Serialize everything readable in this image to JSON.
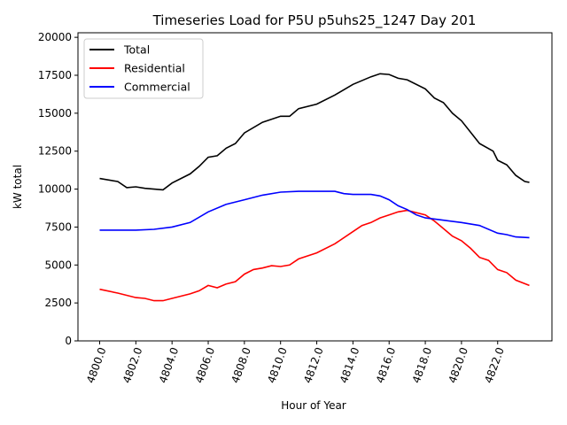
{
  "chart_data": {
    "type": "line",
    "title": "Timeseries Load for P5U p5uhs25_1247  Day 201",
    "xlabel": "Hour of Year",
    "ylabel": "kW total",
    "xlim": [
      4798.8,
      4825.0
    ],
    "ylim": [
      0,
      20300
    ],
    "xticks": [
      4800,
      4802,
      4804,
      4806,
      4808,
      4810,
      4812,
      4814,
      4816,
      4818,
      4820,
      4822
    ],
    "xtick_labels": [
      "4800.0",
      "4802.0",
      "4804.0",
      "4806.0",
      "4808.0",
      "4810.0",
      "4812.0",
      "4814.0",
      "4816.0",
      "4818.0",
      "4820.0",
      "4822.0"
    ],
    "yticks": [
      0,
      2500,
      5000,
      7500,
      10000,
      12500,
      15000,
      17500,
      20000
    ],
    "ytick_labels": [
      "0",
      "2500",
      "5000",
      "7500",
      "10000",
      "12500",
      "15000",
      "17500",
      "20000"
    ],
    "legend_position": "upper-left",
    "grid": false,
    "series": [
      {
        "name": "Total",
        "color": "#000000",
        "x": [
          4800,
          4801,
          4801.5,
          4802,
          4802.5,
          4803,
          4803.5,
          4804,
          4805,
          4805.5,
          4806,
          4806.5,
          4807,
          4807.5,
          4808,
          4809,
          4810,
          4810.5,
          4811,
          4812,
          4813,
          4814,
          4815,
          4815.5,
          4816,
          4816.5,
          4817,
          4818,
          4818.5,
          4819,
          4819.5,
          4820,
          4821,
          4821.75,
          4822,
          4822.5,
          4823,
          4823.5,
          4823.75
        ],
        "y": [
          10700,
          10500,
          10100,
          10150,
          10050,
          10000,
          9950,
          10400,
          11000,
          11500,
          12100,
          12200,
          12700,
          13000,
          13700,
          14400,
          14800,
          14800,
          15300,
          15600,
          16200,
          16900,
          17400,
          17600,
          17550,
          17300,
          17200,
          16600,
          16000,
          15700,
          15000,
          14500,
          13000,
          12500,
          11900,
          11600,
          10900,
          10500,
          10450
        ]
      },
      {
        "name": "Residential",
        "color": "#ff0000",
        "x": [
          4800,
          4801,
          4802,
          4802.5,
          4803,
          4803.5,
          4804,
          4805,
          4805.5,
          4806,
          4806.5,
          4807,
          4807.5,
          4808,
          4808.5,
          4809,
          4809.5,
          4810,
          4810.5,
          4811,
          4812,
          4813,
          4814,
          4814.5,
          4815,
          4815.5,
          4816,
          4816.5,
          4817,
          4818,
          4818.5,
          4819,
          4819.5,
          4820,
          4820.5,
          4821,
          4821.5,
          4822,
          4822.5,
          4823,
          4823.75
        ],
        "y": [
          3400,
          3150,
          2850,
          2800,
          2650,
          2650,
          2800,
          3100,
          3300,
          3650,
          3500,
          3750,
          3900,
          4400,
          4700,
          4800,
          4950,
          4900,
          5000,
          5400,
          5800,
          6400,
          7200,
          7600,
          7800,
          8100,
          8300,
          8500,
          8600,
          8300,
          7900,
          7400,
          6900,
          6600,
          6100,
          5500,
          5300,
          4700,
          4500,
          4000,
          3650
        ]
      },
      {
        "name": "Commercial",
        "color": "#0000ff",
        "x": [
          4800,
          4801,
          4802,
          4803,
          4804,
          4805,
          4806,
          4807,
          4808,
          4809,
          4810,
          4811,
          4812,
          4813,
          4813.5,
          4814,
          4815,
          4815.5,
          4816,
          4816.5,
          4817,
          4817.5,
          4818,
          4819,
          4820,
          4821,
          4822,
          4822.5,
          4823,
          4823.75
        ],
        "y": [
          7300,
          7300,
          7300,
          7350,
          7500,
          7800,
          8500,
          9000,
          9300,
          9600,
          9800,
          9850,
          9850,
          9850,
          9700,
          9650,
          9650,
          9550,
          9300,
          8900,
          8650,
          8300,
          8100,
          7950,
          7800,
          7600,
          7100,
          7000,
          6850,
          6800
        ]
      }
    ]
  }
}
